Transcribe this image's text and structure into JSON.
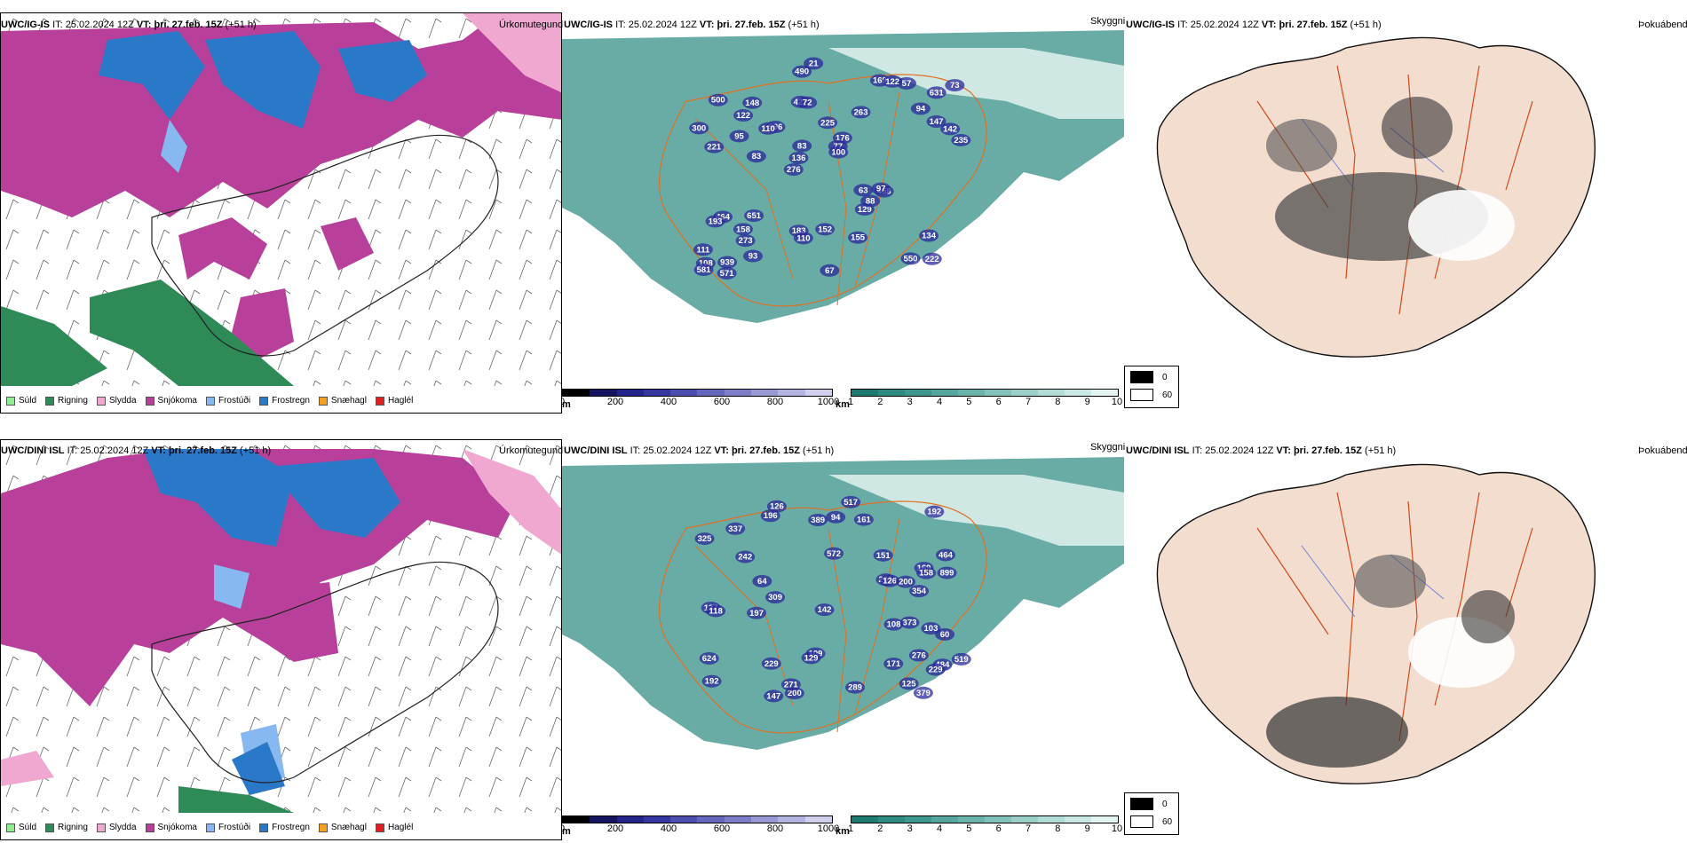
{
  "rows": [
    {
      "model": "UWC/IG-IS",
      "it_label": "IT:",
      "it_value": "25.02.2024 12Z",
      "vt_label": "VT:",
      "vt_value": "þri. 27.feb. 15Z",
      "lead": "(+51 h)",
      "cloud_numbers": [
        "222",
        "221",
        "631",
        "276",
        "263",
        "939",
        "422",
        "225",
        "464",
        "596",
        "111",
        "273",
        "72",
        "176",
        "458",
        "500",
        "490",
        "235",
        "63",
        "147",
        "136",
        "183",
        "83",
        "148",
        "169",
        "651",
        "550",
        "134",
        "97",
        "67",
        "110",
        "95",
        "129",
        "93",
        "142",
        "77",
        "108",
        "110",
        "100",
        "193",
        "94",
        "73",
        "88",
        "155",
        "158",
        "571",
        "581",
        "152",
        "57",
        "21",
        "83",
        "300",
        "122",
        "122"
      ]
    },
    {
      "model": "UWC/DINI ISL",
      "it_label": "IT:",
      "it_value": "25.02.2024 12Z",
      "vt_label": "VT:",
      "vt_value": "þri. 27.feb. 15Z",
      "lead": "(+51 h)",
      "cloud_numbers": [
        "276",
        "464",
        "484",
        "572",
        "192",
        "126",
        "169",
        "229",
        "192",
        "242",
        "899",
        "325",
        "354",
        "200",
        "624",
        "337",
        "229",
        "196",
        "109",
        "158",
        "137",
        "118",
        "289",
        "201",
        "271",
        "129",
        "517",
        "161",
        "151",
        "519",
        "197",
        "171",
        "147",
        "142",
        "103",
        "125",
        "126",
        "389",
        "379",
        "309",
        "373",
        "200",
        "94",
        "64",
        "60",
        "108"
      ]
    }
  ],
  "panel_titles": {
    "precip": "Úrkomutegund",
    "cloud": "Skyggni",
    "fog": "Þokuábendi"
  },
  "precip_legend": [
    {
      "label": "Súld",
      "color": "#90ee90"
    },
    {
      "label": "Rigning",
      "color": "#2e8b57"
    },
    {
      "label": "Slydda",
      "color": "#f0a8d0"
    },
    {
      "label": "Snjókoma",
      "color": "#b8409a"
    },
    {
      "label": "Frostúði",
      "color": "#87b8f0"
    },
    {
      "label": "Frostregn",
      "color": "#2a78c8"
    },
    {
      "label": "Snæhagl",
      "color": "#f5a020"
    },
    {
      "label": "Haglél",
      "color": "#e02020"
    }
  ],
  "ceiling_scale": {
    "unit": "m",
    "ticks": [
      "0",
      "200",
      "400",
      "600",
      "800",
      "1000"
    ],
    "colors": [
      "#000000",
      "#141460",
      "#24248a",
      "#3636a0",
      "#4e4eb0",
      "#6666bd",
      "#7e7ec8",
      "#9898d4",
      "#b4b4e0",
      "#d0d0ec"
    ]
  },
  "visibility_scale": {
    "unit": "km",
    "ticks": [
      "1",
      "2",
      "3",
      "4",
      "5",
      "6",
      "7",
      "8",
      "9",
      "10"
    ],
    "colors": [
      "#1f7a72",
      "#2f8a82",
      "#3f9890",
      "#55a69e",
      "#6bb4ac",
      "#82c2ba",
      "#9ad0c8",
      "#b2ddd6",
      "#cae9e4",
      "#e4f4f2"
    ]
  },
  "fog_legend": [
    {
      "label": "0",
      "color": "#000000"
    },
    {
      "label": "60",
      "color": "#ffffff"
    }
  ]
}
